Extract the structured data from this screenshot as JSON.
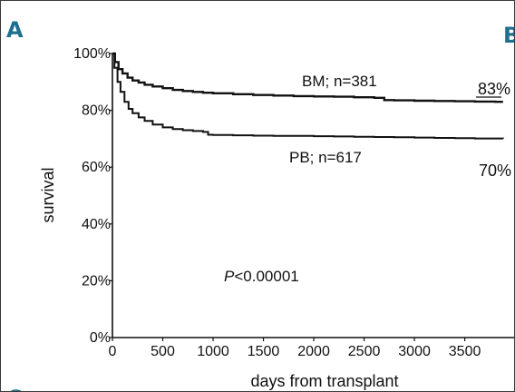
{
  "panel_letters": {
    "top_left": "A",
    "top_right": "B",
    "bottom_left": "C"
  },
  "chart_data": {
    "type": "line",
    "xlabel": "days from transplant",
    "ylabel": "survival",
    "x_ticks": [
      0,
      500,
      1000,
      1500,
      2000,
      2500,
      3000,
      3500
    ],
    "y_ticks": [
      "0%",
      "20%",
      "40%",
      "60%",
      "80%",
      "100%"
    ],
    "y_tick_values": [
      0,
      20,
      40,
      60,
      80,
      100
    ],
    "xlim": [
      0,
      3900
    ],
    "ylim": [
      0,
      100
    ],
    "series": [
      {
        "name": "BM; n=381",
        "end_label": "83%",
        "color": "#111111",
        "x": [
          0,
          25,
          60,
          100,
          150,
          200,
          260,
          320,
          400,
          500,
          600,
          700,
          800,
          900,
          1000,
          1200,
          1400,
          1600,
          1800,
          2000,
          2200,
          2400,
          2600,
          2700,
          2800,
          3000,
          3200,
          3400,
          3600,
          3800,
          3880
        ],
        "y": [
          100,
          97,
          94.5,
          93,
          91.5,
          90.5,
          89.8,
          89,
          88.4,
          87.8,
          87.2,
          86.8,
          86.5,
          86.2,
          86,
          85.7,
          85.4,
          85.2,
          85,
          84.9,
          84.8,
          84.6,
          84.4,
          83.6,
          83.5,
          83.4,
          83.3,
          83.2,
          83.1,
          83,
          83
        ]
      },
      {
        "name": "PB; n=617",
        "end_label": "70%",
        "color": "#111111",
        "x": [
          0,
          20,
          50,
          80,
          120,
          160,
          200,
          260,
          320,
          400,
          500,
          600,
          700,
          800,
          900,
          950,
          1000,
          1200,
          1400,
          1600,
          1800,
          2000,
          2200,
          2400,
          2600,
          2800,
          3000,
          3200,
          3400,
          3600,
          3880
        ],
        "y": [
          100,
          95,
          90,
          86.5,
          83,
          80.5,
          79,
          77.5,
          76.3,
          75,
          74,
          73.4,
          73,
          72.7,
          72.4,
          71.4,
          71.3,
          71.2,
          71.1,
          71,
          71,
          70.9,
          70.8,
          70.7,
          70.6,
          70.5,
          70.4,
          70.3,
          70.2,
          70.1,
          70
        ]
      }
    ],
    "annotation": {
      "italic": "P",
      "rest": "<0.00001"
    }
  }
}
